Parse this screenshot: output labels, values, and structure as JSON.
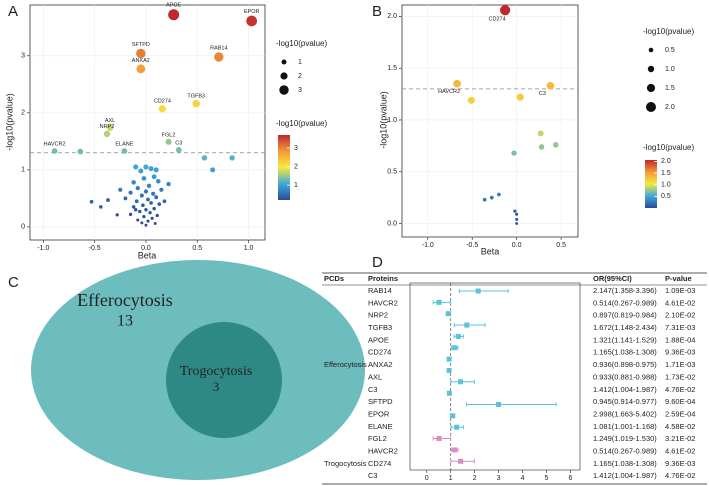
{
  "chart_data": [
    {
      "type": "scatter",
      "panel_label": "A",
      "x_label": "Beta",
      "y_label": "-log10(pvalue)",
      "xlim": [
        -1.13,
        1.16
      ],
      "ylim": [
        -0.23,
        3.89
      ],
      "xticks": [
        {
          "value": -1,
          "label": "-1.0"
        },
        -0.5,
        {
          "value": 0,
          "label": "0.0"
        },
        0.5,
        {
          "value": 1,
          "label": "1.0"
        }
      ],
      "yticks": [
        0,
        1,
        2,
        3
      ],
      "grid": true,
      "threshold": 1.3,
      "label_position": "above",
      "x": [
        0.27,
        1.03,
        0.71,
        -0.05,
        -0.05,
        0.49,
        0.16,
        -0.35,
        -0.38,
        0.22,
        0.32,
        -0.89,
        -0.21,
        -0.64,
        0.57,
        0.84,
        0.65,
        -0.53,
        -0.44,
        -0.28,
        -0.37,
        -0.1,
        0.0,
        0.05,
        0.1,
        -0.05,
        0.08,
        -0.02,
        0.12,
        -0.12,
        0.03,
        -0.08,
        0.15,
        0.0,
        -0.15,
        0.07,
        -0.04,
        0.1,
        -0.2,
        0.02,
        -0.09,
        0.05,
        0.13,
        -0.03,
        -0.12,
        0.08,
        0.0,
        -0.06,
        0.04,
        -0.15,
        0.11,
        -0.02,
        0.06,
        -0.08,
        0.02,
        -0.04,
        0.09,
        0.0,
        -0.1,
        0.18,
        -0.25,
        0.22
      ],
      "y": [
        3.72,
        3.61,
        2.98,
        3.04,
        2.77,
        2.16,
        2.07,
        1.74,
        1.63,
        1.49,
        1.35,
        1.33,
        1.33,
        1.32,
        1.21,
        1.21,
        1.0,
        0.44,
        0.35,
        0.21,
        0.47,
        1.05,
        1.05,
        1.02,
        1.0,
        0.98,
        0.88,
        0.85,
        0.8,
        0.78,
        0.72,
        0.68,
        0.65,
        0.62,
        0.6,
        0.58,
        0.55,
        0.52,
        0.5,
        0.48,
        0.45,
        0.42,
        0.4,
        0.38,
        0.35,
        0.32,
        0.3,
        0.27,
        0.25,
        0.22,
        0.2,
        0.18,
        0.15,
        0.12,
        0.1,
        0.07,
        0.06,
        0.03,
        0.3,
        0.45,
        0.65,
        0.75
      ],
      "labels": [
        "APOE",
        "EPOR",
        "RAB14",
        "SFTPD",
        "ANXA2",
        "TGFB3",
        "CD274",
        "AXL",
        "NRP2",
        "FGL2",
        "C3",
        "HAVCR2",
        "ELANE",
        null,
        null,
        null,
        null,
        null,
        null,
        null,
        null,
        null,
        null,
        null,
        null,
        null,
        null,
        null,
        null,
        null,
        null,
        null,
        null,
        null,
        null,
        null,
        null,
        null,
        null,
        null,
        null,
        null,
        null,
        null,
        null,
        null,
        null,
        null,
        null,
        null,
        null,
        null,
        null,
        null,
        null,
        null,
        null,
        null,
        null,
        null,
        null,
        null
      ],
      "size_legend_title": "-log10(pvalue)",
      "size_legend": [
        1,
        2,
        3
      ],
      "color_legend_title": "-log10(pvalue)",
      "color_legend": [
        1,
        2,
        3
      ],
      "clim": [
        0.2,
        3.7
      ],
      "colormap": [
        "#2b4a9b",
        "#3fa9db",
        "#f4e93f",
        "#f39a3b",
        "#c1272d"
      ]
    },
    {
      "type": "scatter",
      "panel_label": "B",
      "x_label": "Beta",
      "y_label": "-log10(pvalue)",
      "xlim": [
        -1.29,
        0.69
      ],
      "ylim": [
        -0.13,
        2.11
      ],
      "xticks": [
        {
          "value": -1,
          "label": "-1.0"
        },
        -0.5,
        {
          "value": 0,
          "label": "0.0"
        },
        0.5
      ],
      "yticks": [
        {
          "value": 0,
          "label": "0.0"
        },
        0.5,
        {
          "value": 1,
          "label": "1.0"
        },
        1.5,
        {
          "value": 2,
          "label": "2.0"
        }
      ],
      "grid": true,
      "threshold": 1.3,
      "label_position": "below",
      "x": [
        -0.13,
        -0.67,
        0.38,
        -0.51,
        0.04,
        0.27,
        0.28,
        0.44,
        -0.03,
        -0.28,
        -0.2,
        -0.36,
        -0.02,
        0.0,
        0.0,
        0.0
      ],
      "y": [
        2.06,
        1.35,
        1.33,
        1.19,
        1.22,
        0.87,
        0.74,
        0.76,
        0.68,
        0.25,
        0.28,
        0.23,
        0.12,
        0.09,
        0.04,
        0.0
      ],
      "labels": [
        "CD274",
        "HAVCR2",
        "C3",
        null,
        null,
        null,
        null,
        null,
        null,
        null,
        null,
        null,
        null,
        null,
        null,
        null
      ],
      "size_legend_title": "-log10(pvalue)",
      "size_legend": [
        0.5,
        {
          "value": 1,
          "label": "1.0"
        },
        1.5,
        {
          "value": 2,
          "label": "2.0"
        }
      ],
      "color_legend_title": "-log10(pvalue)",
      "color_legend": [
        0.5,
        {
          "value": 1,
          "label": "1.0"
        },
        1.5,
        {
          "value": 2,
          "label": "2.0"
        }
      ],
      "clim": [
        0.0,
        2.06
      ],
      "colormap": [
        "#2b4a9b",
        "#3fa9db",
        "#f4e93f",
        "#f39a3b",
        "#c1272d"
      ]
    },
    {
      "type": "forest",
      "panel_label": "D",
      "columns": [
        "PCDs",
        "Proteins",
        "OR(95%CI)",
        "P-value"
      ],
      "xlim": [
        -0.7,
        6.4
      ],
      "xticks": [
        0,
        1,
        2,
        3,
        4,
        5,
        6
      ],
      "reference_line": 1,
      "series": [
        {
          "name": "Efferocytosis",
          "color": "#5bc3d9",
          "proteins": [
            "RAB14",
            "HAVCR2",
            "NRP2",
            "TGFB3",
            "APOE",
            "CD274",
            "ANXA2",
            "AXL",
            "C3",
            "SFTPD",
            "EPOR",
            "ELANE",
            "FGL2"
          ],
          "values": [
            2.147,
            0.514,
            0.897,
            1.672,
            1.321,
            1.165,
            0.936,
            0.933,
            1.412,
            0.945,
            2.998,
            1.081,
            1.249
          ],
          "lower": [
            1.358,
            0.267,
            0.819,
            1.148,
            1.141,
            1.038,
            0.898,
            0.881,
            1.004,
            0.914,
            1.663,
            1.001,
            1.019
          ],
          "upper": [
            3.396,
            0.989,
            0.984,
            2.434,
            1.529,
            1.308,
            0.975,
            0.988,
            1.987,
            0.977,
            5.402,
            1.168,
            1.53
          ],
          "value_labels": [
            "2.147(1.358-3.396)",
            "0.514(0.267-0.989)",
            "0.897(0.819-0.984)",
            "1.672(1.148-2.434)",
            "1.321(1.141-1.529)",
            "1.165(1.038-1.308)",
            "0.936(0.898-0.975)",
            "0.933(0.881-0.988)",
            "1.412(1.004-1.987)",
            "0.945(0.914-0.977)",
            "2.998(1.663-5.402)",
            "1.081(1.001-1.168)",
            "1.249(1.019-1.530)"
          ],
          "p_values": [
            0.00109,
            0.0461,
            0.021,
            0.00731,
            0.000188,
            0.00936,
            0.00171,
            0.0173,
            0.0476,
            0.00096,
            0.000259,
            0.0458,
            0.0321
          ],
          "p_value_labels": [
            "1.09E-03",
            "4.61E-02",
            "2.10E-02",
            "7.31E-03",
            "1.88E-04",
            "9.36E-03",
            "1.71E-03",
            "1.73E-02",
            "4.76E-02",
            "9.60E-04",
            "2.59E-04",
            "4.58E-02",
            "3.21E-02"
          ]
        },
        {
          "name": "Trogocytosis",
          "color": "#d98ac8",
          "proteins": [
            "HAVCR2",
            "CD274",
            "C3"
          ],
          "values": [
            0.514,
            1.165,
            1.412
          ],
          "lower": [
            0.267,
            1.038,
            1.004
          ],
          "upper": [
            0.989,
            1.308,
            1.987
          ],
          "value_labels": [
            "0.514(0.267-0.989)",
            "1.165(1.038-1.308)",
            "1.412(1.004-1.987)"
          ],
          "p_values": [
            0.0461,
            0.00936,
            0.0476
          ],
          "p_value_labels": [
            "4.61E-02",
            "9.36E-03",
            "4.76E-02"
          ]
        }
      ]
    }
  ],
  "venn": {
    "panel_label": "C",
    "sets": [
      {
        "name": "Efferocytosis",
        "count": 13
      },
      {
        "name": "Trogocytosis",
        "count": 3
      }
    ]
  }
}
